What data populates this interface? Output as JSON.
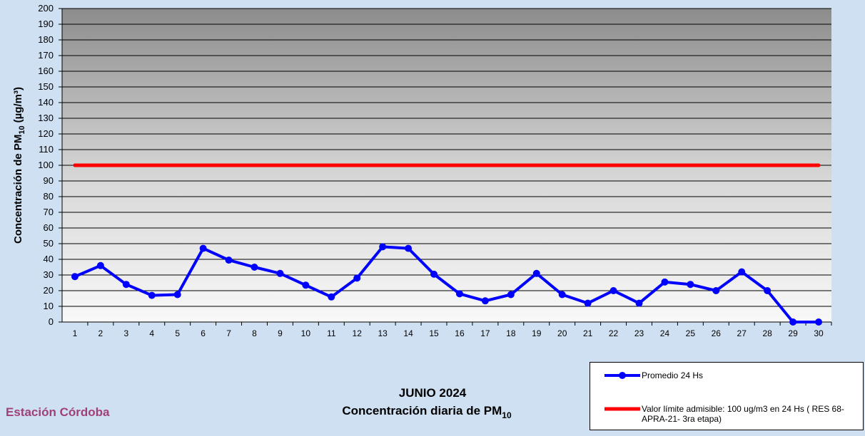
{
  "chart_data": {
    "type": "line",
    "title": "JUNIO 2024",
    "subtitle_parts": [
      "Concentración diaria de PM",
      "10"
    ],
    "station": "Estación Córdoba",
    "ylabel_parts": [
      "Concentración de PM",
      "10",
      "(µg/m³)"
    ],
    "categories": [
      1,
      2,
      3,
      4,
      5,
      6,
      7,
      8,
      9,
      10,
      11,
      12,
      13,
      14,
      15,
      16,
      17,
      18,
      19,
      20,
      21,
      22,
      23,
      24,
      25,
      26,
      27,
      28,
      29,
      30
    ],
    "series": [
      {
        "name": "Promedio 24 Hs",
        "color": "#0000ff",
        "markers": true,
        "values": [
          29,
          36,
          24,
          17,
          17.5,
          47,
          39.5,
          35,
          31,
          23.5,
          16,
          28,
          48,
          47,
          30.5,
          18,
          13.5,
          17.5,
          31,
          17.5,
          12,
          20,
          12,
          25.5,
          24,
          20,
          32,
          20,
          0,
          0
        ]
      },
      {
        "name": "Valor límite admisible: 100 ug/m3 en 24 Hs ( RES 68-APRA-21- 3ra etapa)",
        "color": "#ff0000",
        "markers": false,
        "values": [
          100,
          100,
          100,
          100,
          100,
          100,
          100,
          100,
          100,
          100,
          100,
          100,
          100,
          100,
          100,
          100,
          100,
          100,
          100,
          100,
          100,
          100,
          100,
          100,
          100,
          100,
          100,
          100,
          100,
          100
        ]
      }
    ],
    "ylim": [
      0,
      200
    ],
    "yticks": [
      0,
      10,
      20,
      30,
      40,
      50,
      60,
      70,
      80,
      90,
      100,
      110,
      120,
      130,
      140,
      150,
      160,
      170,
      180,
      190,
      200
    ],
    "grid": true
  }
}
